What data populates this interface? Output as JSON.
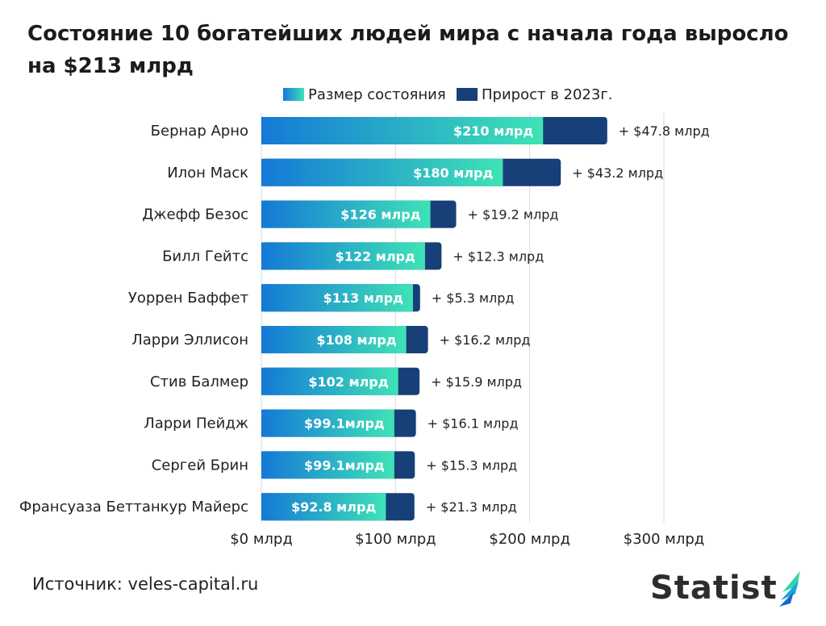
{
  "title": "Состояние 10 богатейших людей мира с начала года выросло на $213 млрд",
  "source": "Источник: veles-capital.ru",
  "logo": {
    "text": "Statist"
  },
  "colors": {
    "wealth_start": "#1479d6",
    "wealth_end": "#3fe3b6",
    "growth": "#173f78",
    "grid": "#d9d9d9"
  },
  "chart_data": {
    "type": "bar",
    "orientation": "horizontal",
    "stacked": true,
    "categories": [
      "Бернар Арно",
      "Илон Маск",
      "Джефф Безос",
      "Билл Гейтс",
      "Уоррен Баффет",
      "Ларри Эллисон",
      "Стив Балмер",
      "Ларри Пейдж",
      "Сергей Брин",
      "Франсуаза Беттанкур Майерс"
    ],
    "series": [
      {
        "name": "Размер состояния",
        "values": [
          210,
          180,
          126,
          122,
          113,
          108,
          102,
          99.1,
          99.1,
          92.8
        ],
        "labels": [
          "$210 млрд",
          "$180 млрд",
          "$126 млрд",
          "$122 млрд",
          "$113 млрд",
          "$108 млрд",
          "$102 млрд",
          "$99.1млрд",
          "$99.1млрд",
          "$92.8 млрд"
        ]
      },
      {
        "name": "Прирост в 2023г.",
        "values": [
          47.8,
          43.2,
          19.2,
          12.3,
          5.3,
          16.2,
          15.9,
          16.1,
          15.3,
          21.3
        ],
        "labels": [
          "+ $47.8 млрд",
          "+ $43.2 млрд",
          "+ $19.2 млрд",
          "+ $12.3 млрд",
          "+ $5.3 млрд",
          "+ $16.2 млрд",
          "+ $15.9 млрд",
          "+ $16.1 млрд",
          "+ $15.3 млрд",
          "+ $21.3 млрд"
        ]
      }
    ],
    "xlim": [
      0,
      300
    ],
    "xticks": [
      0,
      100,
      200,
      300
    ],
    "xtick_labels": [
      "$0 млрд",
      "$100 млрд",
      "$200 млрд",
      "$300 млрд"
    ],
    "grid": true,
    "legend": "top-center"
  }
}
